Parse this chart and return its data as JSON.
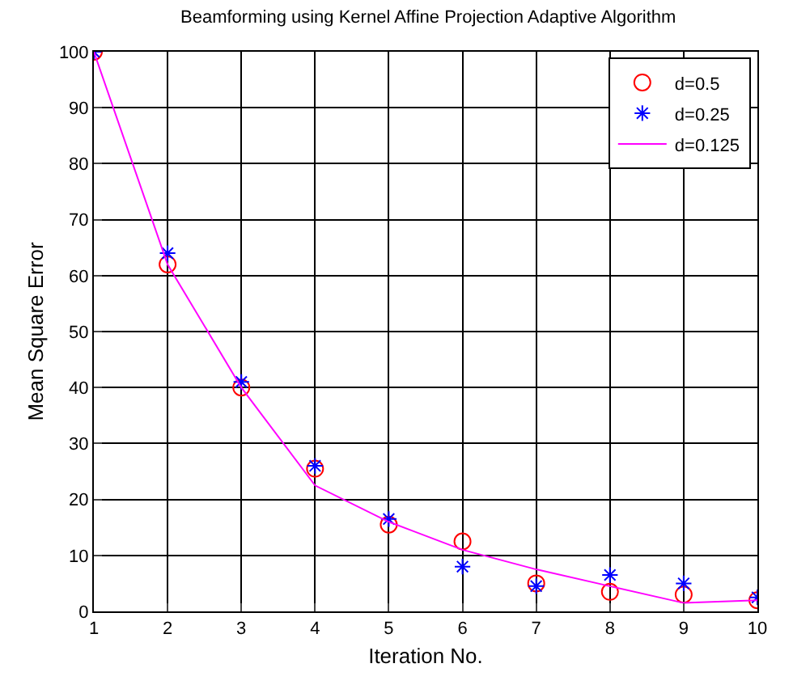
{
  "chart_data": {
    "type": "scatter",
    "title": "Beamforming using Kernel Affine Projection Adaptive Algorithm",
    "xlabel": "Iteration No.",
    "ylabel": "Mean Square Error",
    "x": [
      1,
      2,
      3,
      4,
      5,
      6,
      7,
      8,
      9,
      10
    ],
    "series": [
      {
        "name": "d=0.5",
        "color": "#ff0000",
        "marker": "circle",
        "values": [
          100,
          62,
          40,
          25.5,
          15.5,
          12.5,
          5,
          3.5,
          3,
          2
        ]
      },
      {
        "name": "d=0.25",
        "color": "#0000ff",
        "marker": "cross",
        "values": [
          100,
          64,
          41,
          26,
          16.5,
          8,
          4.5,
          6.5,
          5,
          2.5
        ]
      },
      {
        "name": "d=0.125",
        "type": "line",
        "color": "#ff00ff",
        "marker": "none",
        "line_style": "solid",
        "values": [
          100,
          62,
          40,
          22.5,
          16,
          11,
          7.5,
          4.5,
          1.5,
          2
        ]
      }
    ],
    "xlim": [
      1,
      10
    ],
    "xticks": [
      1,
      2,
      3,
      4,
      5,
      6,
      7,
      8,
      9,
      10
    ],
    "ylim": [
      0,
      100
    ],
    "yticks": [
      0,
      10,
      20,
      30,
      40,
      50,
      60,
      70,
      80,
      90,
      100
    ],
    "grid": true,
    "legend": "top right"
  }
}
